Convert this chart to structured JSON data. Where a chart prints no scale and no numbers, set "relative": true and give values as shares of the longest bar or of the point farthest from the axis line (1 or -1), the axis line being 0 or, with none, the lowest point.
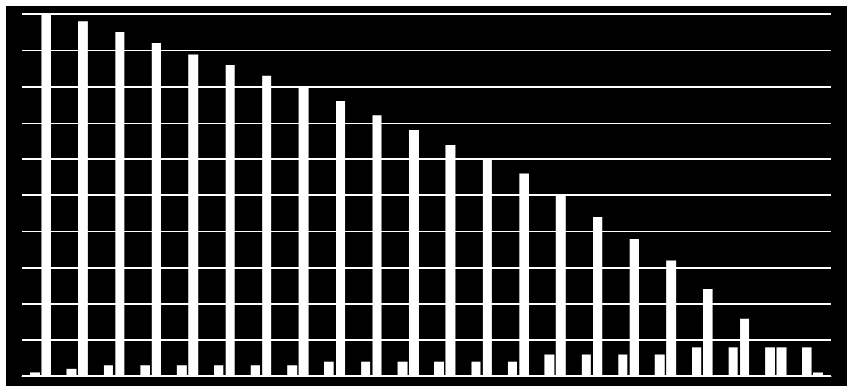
{
  "chart_data": {
    "type": "bar",
    "relative": true,
    "grid": "y",
    "categories": [
      null,
      null,
      null,
      null,
      null,
      null,
      null,
      null,
      null,
      null,
      null,
      null,
      null,
      null,
      null,
      null,
      null,
      null,
      null,
      null,
      null,
      null
    ],
    "series": [
      {
        "color": "#ffffff",
        "values": [
          0.01,
          0.02,
          0.03,
          0.03,
          0.03,
          0.03,
          0.03,
          0.03,
          0.04,
          0.04,
          0.04,
          0.04,
          0.04,
          0.04,
          0.06,
          0.06,
          0.06,
          0.06,
          0.08,
          0.08,
          0.08,
          0.08
        ]
      },
      {
        "color": "#ffffff",
        "values": [
          1,
          0.98,
          0.95,
          0.92,
          0.89,
          0.86,
          0.83,
          0.8,
          0.76,
          0.72,
          0.68,
          0.64,
          0.6,
          0.56,
          0.5,
          0.44,
          0.38,
          0.32,
          0.24,
          0.16,
          0.08,
          0.01
        ]
      }
    ]
  }
}
